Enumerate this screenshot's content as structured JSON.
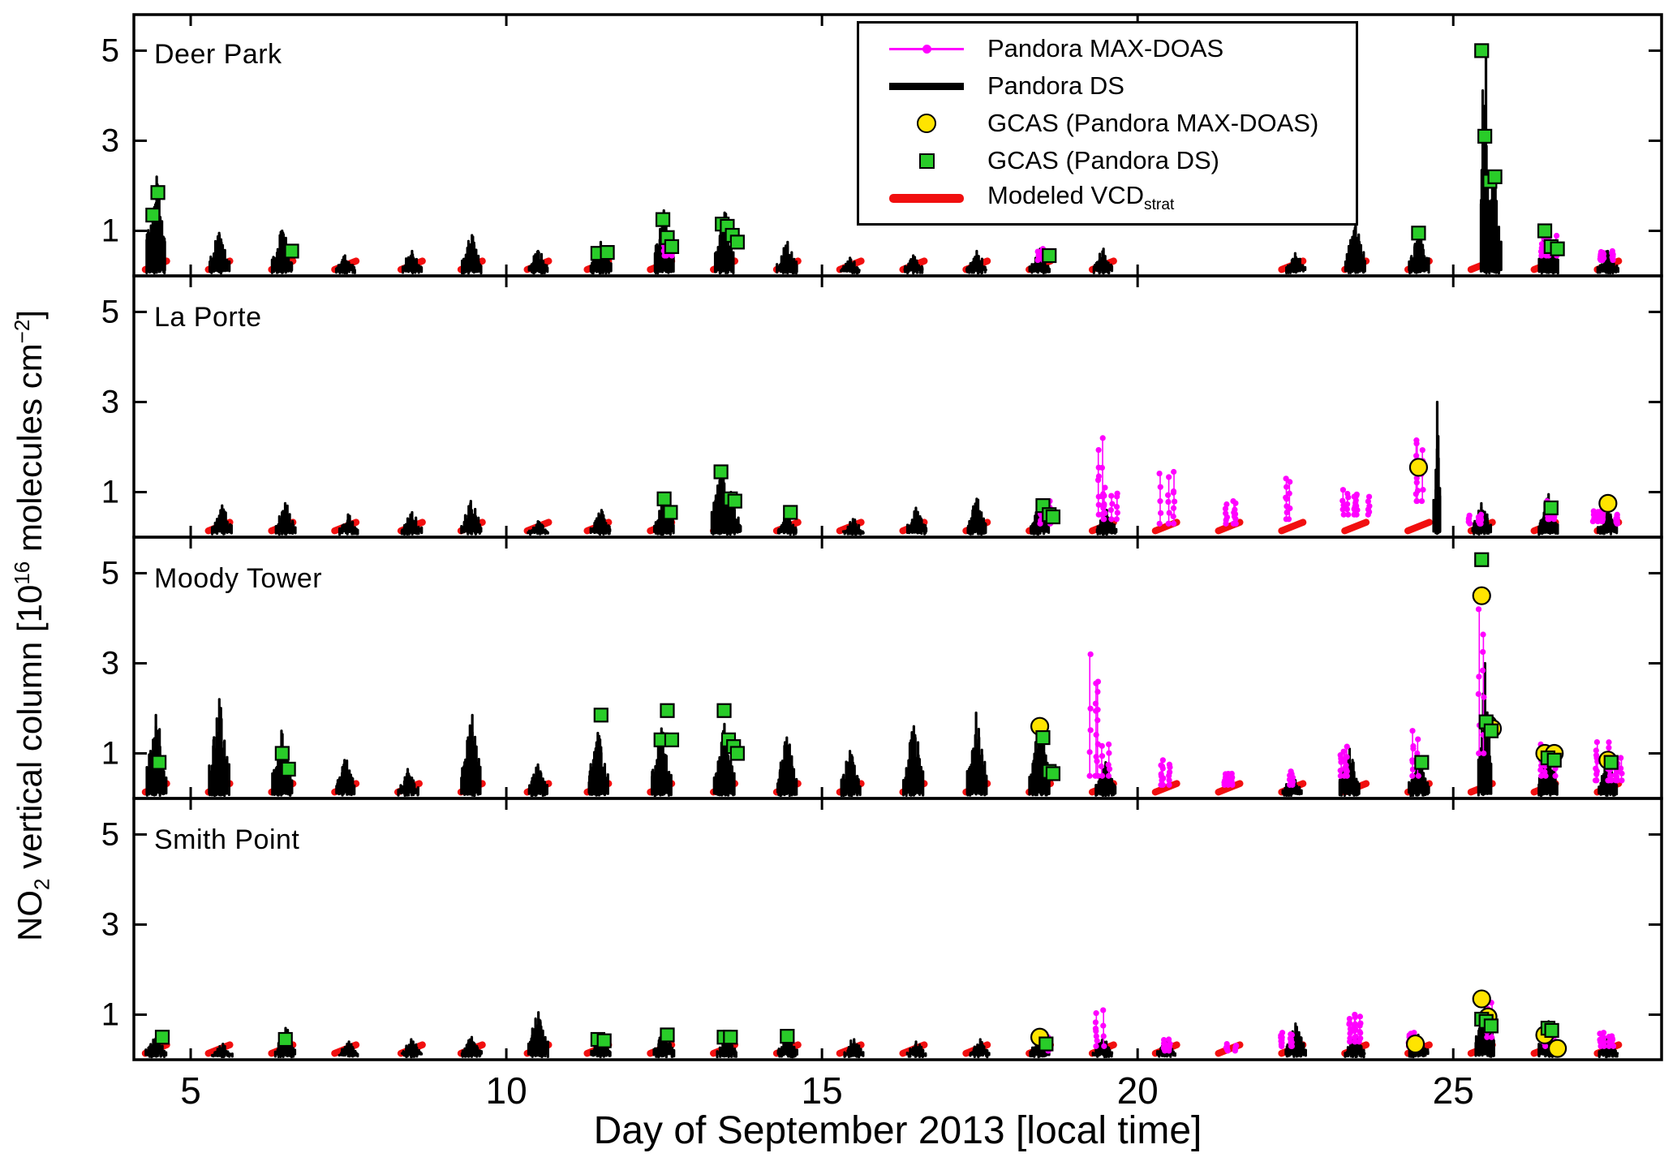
{
  "figure": {
    "xlabel": "Day of September 2013 [local time]",
    "ylabel": {
      "p1": "NO",
      "sub1": "2",
      "p2": " vertical column  [10",
      "sup1": "16",
      "p3": " molecules  cm",
      "sup2": "−2",
      "p4": "]"
    },
    "background": "#ffffff"
  },
  "colors": {
    "maxdoas": "#ff00ff",
    "ds": "#000000",
    "gcas_circle": "#ffe400",
    "gcas_square": "#29cc29",
    "modeled": "#f10f0f",
    "frame": "#000000"
  },
  "legend": {
    "items": [
      {
        "label": "Pandora MAX-DOAS",
        "marker": "magenta-line-dot"
      },
      {
        "label": "Pandora DS",
        "marker": "black-line"
      },
      {
        "label": "GCAS (Pandora MAX-DOAS)",
        "marker": "yellow-circle"
      },
      {
        "label": "GCAS (Pandora DS)",
        "marker": "green-square"
      },
      {
        "label": "Modeled VCD",
        "sub": "strat",
        "marker": "red-line"
      }
    ]
  },
  "chart_data": {
    "type": "line",
    "title": "",
    "xlabel": "Day of September 2013 [local time]",
    "ylabel": "NO2 vertical column [10^16 molecules cm^-2]",
    "xlim": [
      4.1,
      28.3
    ],
    "ylim": [
      0,
      5.8
    ],
    "xticks": [
      5,
      10,
      15,
      20,
      25
    ],
    "yticks": [
      1,
      3,
      5
    ],
    "grid": false,
    "legend_position": "top-right-first-panel",
    "series_names": [
      "Pandora MAX-DOAS",
      "Pandora DS",
      "GCAS (Pandora MAX-DOAS)",
      "GCAS (Pandora DS)",
      "Modeled VCDstrat"
    ],
    "panels": [
      {
        "site": "Deer Park",
        "pandora_ds": [
          [
            4.45,
            2.2
          ],
          [
            5.45,
            0.95
          ],
          [
            6.45,
            1.0
          ],
          [
            7.45,
            0.45
          ],
          [
            8.5,
            0.55
          ],
          [
            9.45,
            0.9
          ],
          [
            10.5,
            0.55
          ],
          [
            11.5,
            0.75
          ],
          [
            12.5,
            1.45
          ],
          [
            13.45,
            1.4
          ],
          [
            14.45,
            0.75
          ],
          [
            15.45,
            0.4
          ],
          [
            16.45,
            0.45
          ],
          [
            17.45,
            0.55
          ],
          [
            18.45,
            0.6
          ],
          [
            19.45,
            0.6
          ],
          [
            22.5,
            0.5
          ],
          [
            23.45,
            1.3
          ],
          [
            24.45,
            1.0
          ],
          [
            25.5,
            5.05,
            0.07
          ],
          [
            25.65,
            2.3,
            0.1
          ],
          [
            26.5,
            1.1
          ],
          [
            27.45,
            0.55
          ]
        ],
        "pandora_maxdoas": [
          [
            12.5,
            0.45,
            0.8
          ],
          [
            18.5,
            0.35,
            0.6
          ],
          [
            26.5,
            0.45,
            0.9
          ],
          [
            27.4,
            0.35,
            0.55
          ]
        ],
        "gcas_maxdoas": [],
        "gcas_ds": [
          [
            4.4,
            1.35
          ],
          [
            4.48,
            1.85
          ],
          [
            6.6,
            0.55
          ],
          [
            11.45,
            0.5
          ],
          [
            11.6,
            0.52
          ],
          [
            12.48,
            1.25
          ],
          [
            12.55,
            0.85
          ],
          [
            12.62,
            0.65
          ],
          [
            13.42,
            1.15
          ],
          [
            13.5,
            1.1
          ],
          [
            13.58,
            0.9
          ],
          [
            13.66,
            0.75
          ],
          [
            18.6,
            0.45
          ],
          [
            24.45,
            0.95
          ],
          [
            25.45,
            5.0
          ],
          [
            25.5,
            3.1
          ],
          [
            25.58,
            2.1
          ],
          [
            25.66,
            2.2
          ],
          [
            26.45,
            1.0
          ],
          [
            26.55,
            0.65
          ],
          [
            26.65,
            0.6
          ]
        ],
        "modeled_days": [
          4.45,
          5.45,
          6.45,
          7.45,
          8.5,
          9.45,
          10.5,
          11.45,
          12.45,
          13.45,
          14.45,
          15.45,
          16.45,
          17.45,
          18.45,
          19.45,
          22.45,
          23.45,
          24.45,
          25.45,
          26.45,
          27.45
        ]
      },
      {
        "site": "La Porte",
        "pandora_ds": [
          [
            5.5,
            0.7
          ],
          [
            6.5,
            0.75
          ],
          [
            7.5,
            0.5
          ],
          [
            8.5,
            0.55
          ],
          [
            9.45,
            0.8
          ],
          [
            10.5,
            0.35
          ],
          [
            11.5,
            0.6
          ],
          [
            12.5,
            0.95
          ],
          [
            13.4,
            1.5
          ],
          [
            13.55,
            1.0
          ],
          [
            14.45,
            0.5
          ],
          [
            15.5,
            0.4
          ],
          [
            16.5,
            0.65
          ],
          [
            17.45,
            0.85
          ],
          [
            18.45,
            0.8
          ],
          [
            19.5,
            0.6
          ],
          [
            24.75,
            3.0,
            0.05
          ],
          [
            25.45,
            0.75
          ],
          [
            26.5,
            0.95
          ],
          [
            27.45,
            0.6
          ]
        ],
        "pandora_maxdoas": [
          [
            18.5,
            0.3,
            0.8
          ],
          [
            19.35,
            0.5,
            2.2
          ],
          [
            19.55,
            0.4,
            1.1
          ],
          [
            20.45,
            0.3,
            1.45
          ],
          [
            21.5,
            0.3,
            0.8
          ],
          [
            22.45,
            0.4,
            1.3
          ],
          [
            23.35,
            0.5,
            1.05
          ],
          [
            23.55,
            0.5,
            0.9
          ],
          [
            24.45,
            0.8,
            2.15
          ],
          [
            25.35,
            0.3,
            0.5
          ],
          [
            26.5,
            0.4,
            0.8
          ],
          [
            27.3,
            0.35,
            0.6
          ],
          [
            27.6,
            0.3,
            0.5
          ]
        ],
        "gcas_maxdoas": [
          [
            24.45,
            1.55
          ],
          [
            27.45,
            0.75
          ]
        ],
        "gcas_ds": [
          [
            12.5,
            0.85
          ],
          [
            12.6,
            0.55
          ],
          [
            13.4,
            1.45
          ],
          [
            13.55,
            0.85
          ],
          [
            13.62,
            0.8
          ],
          [
            14.5,
            0.55
          ],
          [
            18.5,
            0.7
          ],
          [
            18.6,
            0.5
          ],
          [
            18.66,
            0.45
          ],
          [
            26.55,
            0.65
          ]
        ],
        "modeled_days": [
          5.45,
          6.45,
          7.45,
          8.5,
          9.45,
          10.5,
          11.45,
          12.45,
          13.45,
          14.45,
          15.45,
          16.45,
          17.45,
          18.45,
          19.45,
          20.45,
          21.45,
          22.45,
          23.45,
          24.45,
          25.45,
          26.45,
          27.45
        ]
      },
      {
        "site": "Moody Tower",
        "pandora_ds": [
          [
            4.45,
            1.85
          ],
          [
            5.45,
            2.2
          ],
          [
            6.45,
            1.5
          ],
          [
            7.45,
            0.85
          ],
          [
            8.45,
            0.65
          ],
          [
            9.45,
            1.85
          ],
          [
            10.5,
            0.75
          ],
          [
            11.45,
            1.45
          ],
          [
            12.45,
            1.55
          ],
          [
            13.45,
            1.65
          ],
          [
            14.45,
            1.35
          ],
          [
            15.45,
            1.05
          ],
          [
            16.45,
            1.6
          ],
          [
            17.45,
            1.9
          ],
          [
            18.45,
            1.65
          ],
          [
            19.5,
            0.8
          ],
          [
            22.45,
            0.55
          ],
          [
            23.35,
            1.1
          ],
          [
            24.45,
            0.95
          ],
          [
            25.5,
            3.0,
            0.1
          ],
          [
            26.5,
            1.15
          ],
          [
            27.45,
            0.85
          ]
        ],
        "pandora_maxdoas": [
          [
            19.35,
            0.5,
            3.2
          ],
          [
            19.55,
            0.5,
            1.2
          ],
          [
            20.45,
            0.3,
            0.85
          ],
          [
            21.5,
            0.3,
            0.55
          ],
          [
            22.45,
            0.3,
            0.6
          ],
          [
            23.35,
            0.5,
            1.15
          ],
          [
            24.45,
            0.5,
            1.5
          ],
          [
            25.5,
            1.0,
            4.2
          ],
          [
            26.5,
            0.5,
            1.2
          ],
          [
            27.35,
            0.4,
            1.25
          ],
          [
            27.6,
            0.4,
            0.9
          ]
        ],
        "gcas_maxdoas": [
          [
            18.45,
            1.6
          ],
          [
            25.45,
            4.5
          ],
          [
            25.55,
            1.65
          ],
          [
            25.62,
            1.55
          ],
          [
            26.45,
            1.0
          ],
          [
            26.6,
            1.0
          ],
          [
            27.45,
            0.85
          ]
        ],
        "gcas_ds": [
          [
            4.5,
            0.8
          ],
          [
            6.45,
            1.0
          ],
          [
            6.55,
            0.65
          ],
          [
            11.5,
            1.85
          ],
          [
            12.45,
            1.3
          ],
          [
            12.55,
            1.95
          ],
          [
            12.62,
            1.3
          ],
          [
            13.45,
            1.95
          ],
          [
            13.52,
            1.3
          ],
          [
            13.6,
            1.15
          ],
          [
            13.66,
            1.0
          ],
          [
            18.5,
            1.35
          ],
          [
            18.6,
            0.6
          ],
          [
            18.66,
            0.55
          ],
          [
            24.5,
            0.8
          ],
          [
            25.45,
            5.3
          ],
          [
            25.52,
            1.7
          ],
          [
            25.6,
            1.5
          ],
          [
            26.5,
            0.9
          ],
          [
            26.6,
            0.85
          ],
          [
            27.5,
            0.8
          ]
        ],
        "modeled_days": [
          4.45,
          5.45,
          6.45,
          7.45,
          8.45,
          9.45,
          10.5,
          11.45,
          12.45,
          13.45,
          14.45,
          15.45,
          16.45,
          17.45,
          18.45,
          19.45,
          20.45,
          21.45,
          22.45,
          23.45,
          24.45,
          25.45,
          26.45,
          27.45
        ]
      },
      {
        "site": "Smith Point",
        "pandora_ds": [
          [
            4.45,
            0.6
          ],
          [
            5.5,
            0.35
          ],
          [
            6.5,
            0.7
          ],
          [
            7.5,
            0.4
          ],
          [
            8.5,
            0.45
          ],
          [
            9.45,
            0.5
          ],
          [
            10.5,
            1.05
          ],
          [
            11.5,
            0.5
          ],
          [
            12.5,
            0.65
          ],
          [
            13.5,
            0.55
          ],
          [
            14.45,
            0.6
          ],
          [
            15.5,
            0.45
          ],
          [
            16.5,
            0.4
          ],
          [
            17.5,
            0.45
          ],
          [
            18.45,
            0.55
          ],
          [
            19.45,
            0.5
          ],
          [
            20.45,
            0.45
          ],
          [
            22.5,
            0.8
          ],
          [
            23.45,
            0.55
          ],
          [
            24.45,
            0.55
          ],
          [
            25.5,
            1.25
          ],
          [
            26.5,
            0.85
          ],
          [
            27.45,
            0.5
          ]
        ],
        "pandora_maxdoas": [
          [
            18.5,
            0.2,
            0.5
          ],
          [
            19.4,
            0.3,
            1.1
          ],
          [
            20.45,
            0.2,
            0.45
          ],
          [
            21.5,
            0.2,
            0.35
          ],
          [
            22.4,
            0.3,
            0.6
          ],
          [
            23.4,
            0.4,
            1.0
          ],
          [
            24.4,
            0.3,
            0.6
          ],
          [
            25.5,
            0.5,
            1.3
          ],
          [
            26.5,
            0.3,
            0.8
          ],
          [
            27.4,
            0.3,
            0.6
          ]
        ],
        "gcas_maxdoas": [
          [
            18.45,
            0.5
          ],
          [
            24.4,
            0.35
          ],
          [
            25.45,
            1.35
          ],
          [
            25.55,
            0.95
          ],
          [
            26.45,
            0.55
          ],
          [
            26.65,
            0.25
          ]
        ],
        "gcas_ds": [
          [
            4.55,
            0.5
          ],
          [
            6.5,
            0.45
          ],
          [
            11.45,
            0.45
          ],
          [
            11.55,
            0.42
          ],
          [
            12.55,
            0.55
          ],
          [
            13.45,
            0.5
          ],
          [
            13.55,
            0.5
          ],
          [
            14.45,
            0.52
          ],
          [
            18.55,
            0.35
          ],
          [
            25.45,
            0.9
          ],
          [
            25.52,
            0.85
          ],
          [
            25.6,
            0.75
          ],
          [
            26.5,
            0.7
          ],
          [
            26.56,
            0.65
          ]
        ],
        "modeled_days": [
          4.45,
          5.45,
          6.45,
          7.45,
          8.5,
          9.45,
          10.5,
          11.45,
          12.45,
          13.45,
          14.45,
          15.45,
          16.45,
          17.45,
          18.45,
          19.45,
          20.45,
          21.45,
          22.45,
          23.45,
          24.45,
          25.45,
          26.45,
          27.45
        ]
      }
    ]
  }
}
